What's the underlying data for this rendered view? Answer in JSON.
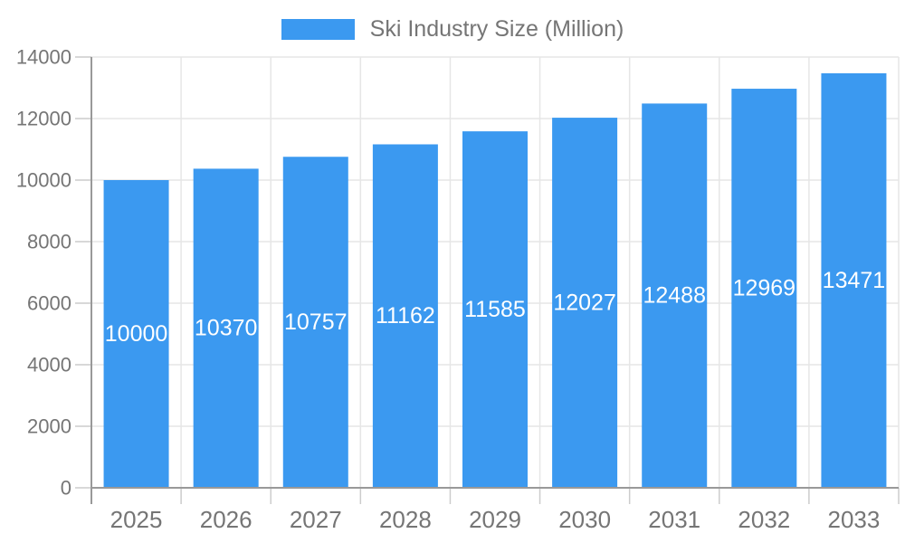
{
  "chart_data": {
    "type": "bar",
    "title": "Ski Industry Size (Million)",
    "categories": [
      "2025",
      "2026",
      "2027",
      "2028",
      "2029",
      "2030",
      "2031",
      "2032",
      "2033"
    ],
    "values": [
      10000,
      10370,
      10757,
      11162,
      11585,
      12027,
      12488,
      12969,
      13471
    ],
    "series": [
      {
        "name": "Ski Industry Size (Million)",
        "values": [
          10000,
          10370,
          10757,
          11162,
          11585,
          12027,
          12488,
          12969,
          13471
        ]
      }
    ],
    "xlabel": "",
    "ylabel": "",
    "ylim": [
      0,
      14000
    ],
    "ytick_step": 2000,
    "ytick_labels": [
      "0",
      "2000",
      "4000",
      "6000",
      "8000",
      "10000",
      "12000",
      "14000"
    ],
    "grid": true,
    "legend_position": "top",
    "bar_labels_inside": true,
    "colors": {
      "bar": "#3B99F0",
      "bar_label": "#FFFFFF",
      "axis_text": "#757575",
      "axis_line": "#999999",
      "gridline": "#E6E6E6",
      "tick": "#CCCCCC",
      "background": "#FFFFFF"
    }
  }
}
